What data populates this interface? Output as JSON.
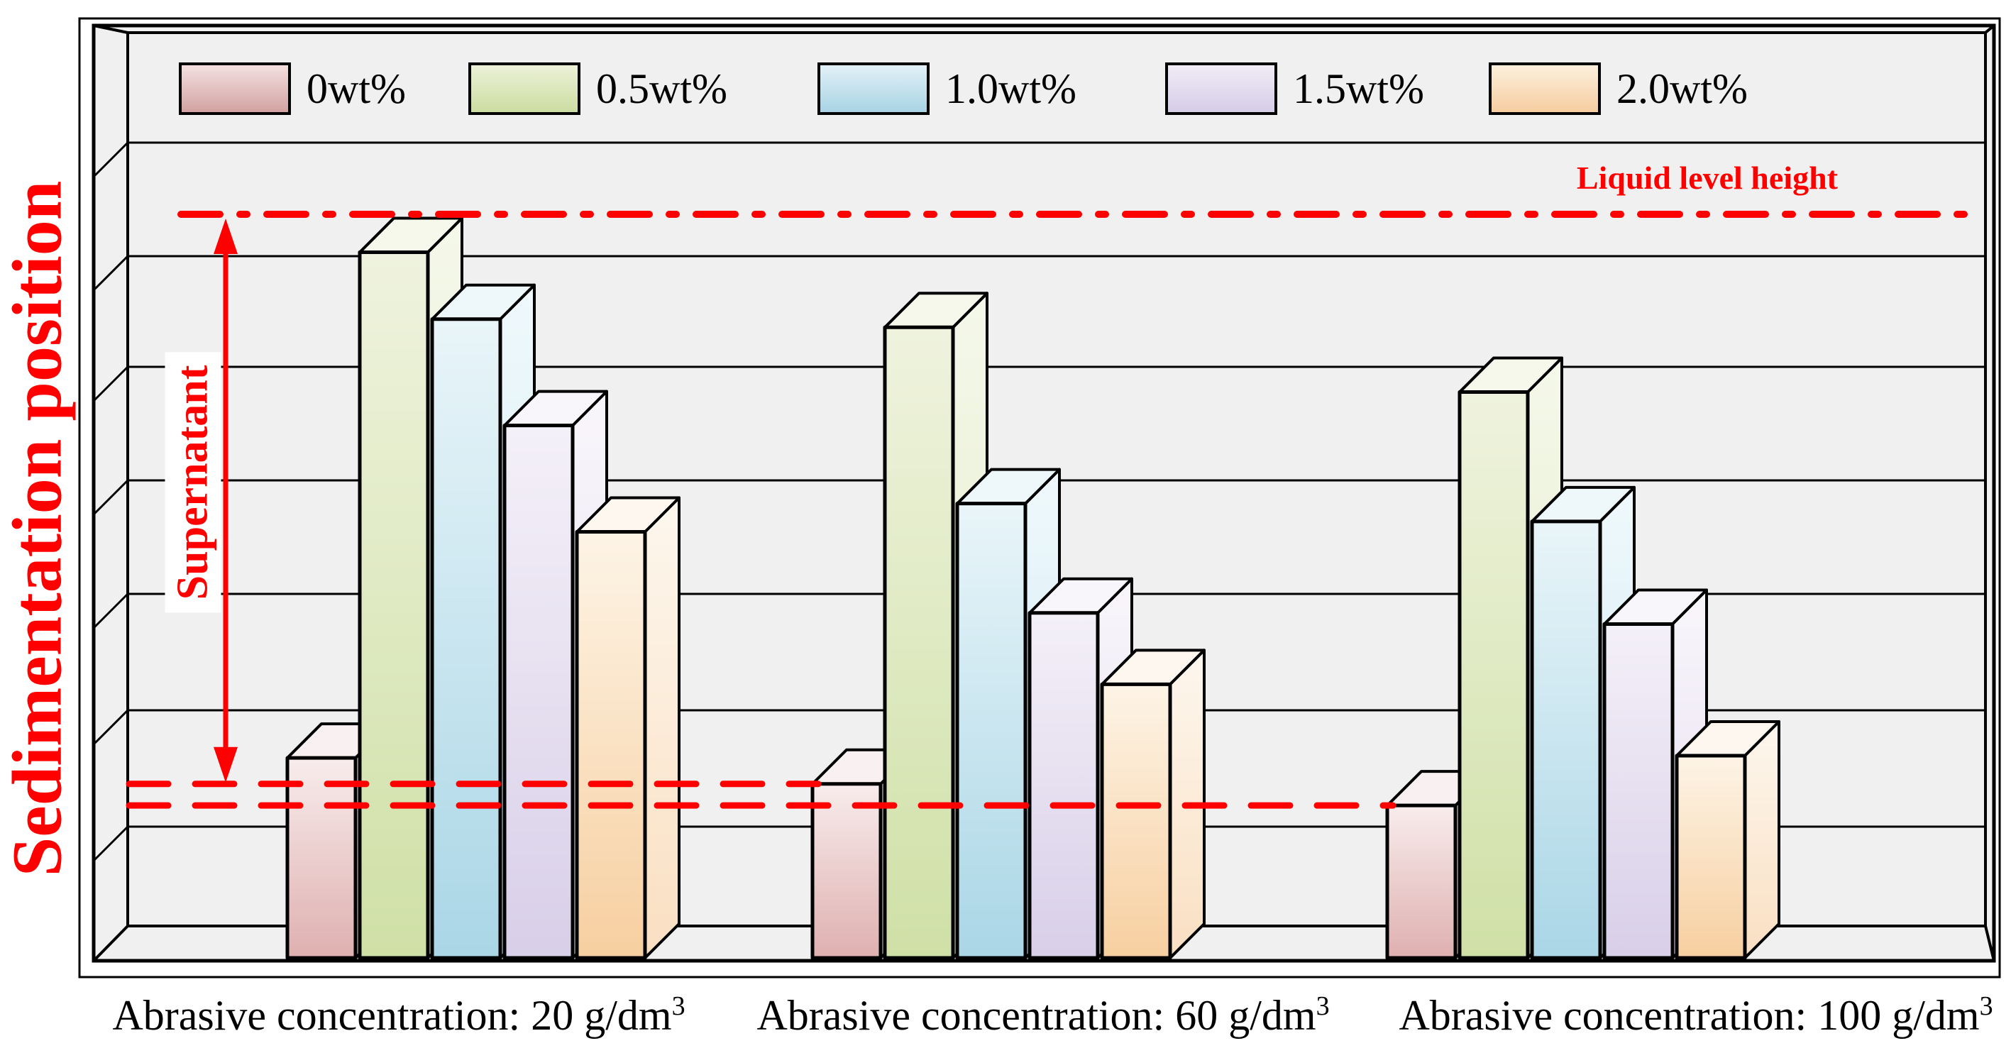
{
  "figure": {
    "ylabel": "Sedimentation position",
    "liquid_level_label": "Liquid level height",
    "supernatant_label": "Supernatant"
  },
  "legend": {
    "items": [
      {
        "label": "0wt%"
      },
      {
        "label": "0.5wt%"
      },
      {
        "label": "1.0wt%"
      },
      {
        "label": "1.5wt%"
      },
      {
        "label": "2.0wt%"
      }
    ]
  },
  "x_axis": {
    "group_labels": [
      {
        "text": "Abrasive concentration: 20 g/dm",
        "sup": "3"
      },
      {
        "text": "Abrasive concentration: 60 g/dm",
        "sup": "3"
      },
      {
        "text": "Abrasive concentration: 100 g/dm",
        "sup": "3"
      }
    ]
  },
  "colors": {
    "annotation_red": "#ff0000",
    "panel_grey": "#f0f0f0",
    "outline_black": "#000000",
    "series": [
      {
        "name": "0wt%",
        "front_top": "#f8ecec",
        "front_bottom": "#dfb0b0",
        "side_top": "#faf2f2",
        "side_bottom": "#e8c6c6",
        "top_face": "#f9f1f1",
        "swatch_top": "#f4e0e0",
        "swatch_bottom": "#d3a2a2"
      },
      {
        "name": "0.5wt%",
        "front_top": "#eff3de",
        "front_bottom": "#cfe0a6",
        "side_top": "#f5f8ea",
        "side_bottom": "#dde9c2",
        "top_face": "#f5f8eb",
        "swatch_top": "#ecf1d8",
        "swatch_bottom": "#ccdda2"
      },
      {
        "name": "1.0wt%",
        "front_top": "#e9f5f9",
        "front_bottom": "#aad6e6",
        "side_top": "#f0f9fc",
        "side_bottom": "#c5e4f0",
        "top_face": "#eef8fb",
        "swatch_top": "#e2f1f7",
        "swatch_bottom": "#a8d3e4"
      },
      {
        "name": "1.5wt%",
        "front_top": "#f4f0f8",
        "front_bottom": "#d8cfe8",
        "side_top": "#f9f6fb",
        "side_bottom": "#e4dcf0",
        "top_face": "#f9f6fb",
        "swatch_top": "#f1ecf6",
        "swatch_bottom": "#d6cde7"
      },
      {
        "name": "2.0wt%",
        "front_top": "#fdf4e6",
        "front_bottom": "#f7cfa0",
        "side_top": "#fdf7ee",
        "side_bottom": "#fadfc2",
        "top_face": "#fdf7ef",
        "swatch_top": "#fcf0dd",
        "swatch_bottom": "#f6cda0"
      }
    ]
  },
  "chart_data": {
    "type": "bar",
    "title": "",
    "xlabel": "",
    "ylabel": "Sedimentation position",
    "categories": [
      "Abrasive concentration: 20 g/dm³",
      "Abrasive concentration: 60 g/dm³",
      "Abrasive concentration: 100 g/dm³"
    ],
    "series": [
      {
        "name": "0wt%",
        "values": [
          0.269,
          0.234,
          0.205
        ]
      },
      {
        "name": "0.5wt%",
        "values": [
          0.949,
          0.848,
          0.761
        ]
      },
      {
        "name": "1.0wt%",
        "values": [
          0.859,
          0.611,
          0.587
        ]
      },
      {
        "name": "1.5wt%",
        "values": [
          0.716,
          0.464,
          0.449
        ]
      },
      {
        "name": "2.0wt%",
        "values": [
          0.573,
          0.368,
          0.272
        ]
      }
    ],
    "unit": "fraction of liquid level height (liquid level = 1.0, vessel bottom = 0)",
    "annotations": {
      "liquid_level_height": 1.0,
      "supernatant_arrow": "from liquid level down to 0wt% sediment level",
      "upper_dashed_sediment_level": 0.234,
      "lower_dashed_sediment_level": 0.205
    },
    "style": "3D bars with depth, grey walls, horizontal gridlines",
    "grid": true,
    "legend_position": "top inside plot"
  }
}
